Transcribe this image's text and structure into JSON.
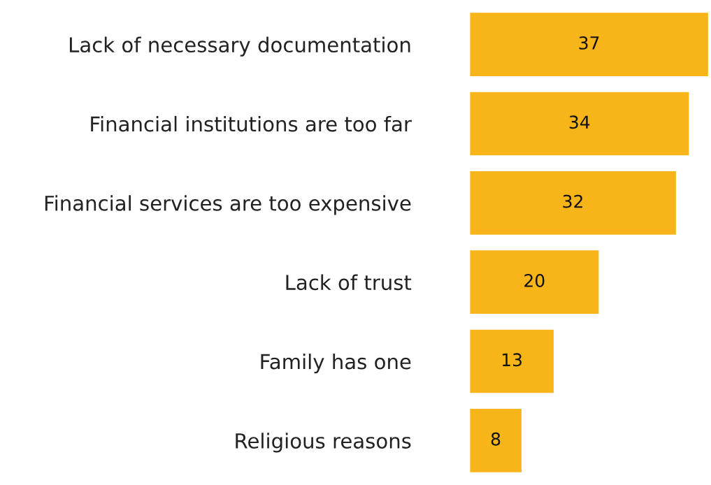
{
  "chart_data": {
    "type": "bar",
    "orientation": "horizontal",
    "data_labels": true,
    "categories": [
      "Lack of necessary documentation",
      "Financial institutions are too far",
      "Financial services are too expensive",
      "Lack of trust",
      "Family has one",
      "Religious reasons"
    ],
    "values": [
      37,
      34,
      32,
      20,
      13,
      8
    ],
    "color": "#f7b519"
  }
}
